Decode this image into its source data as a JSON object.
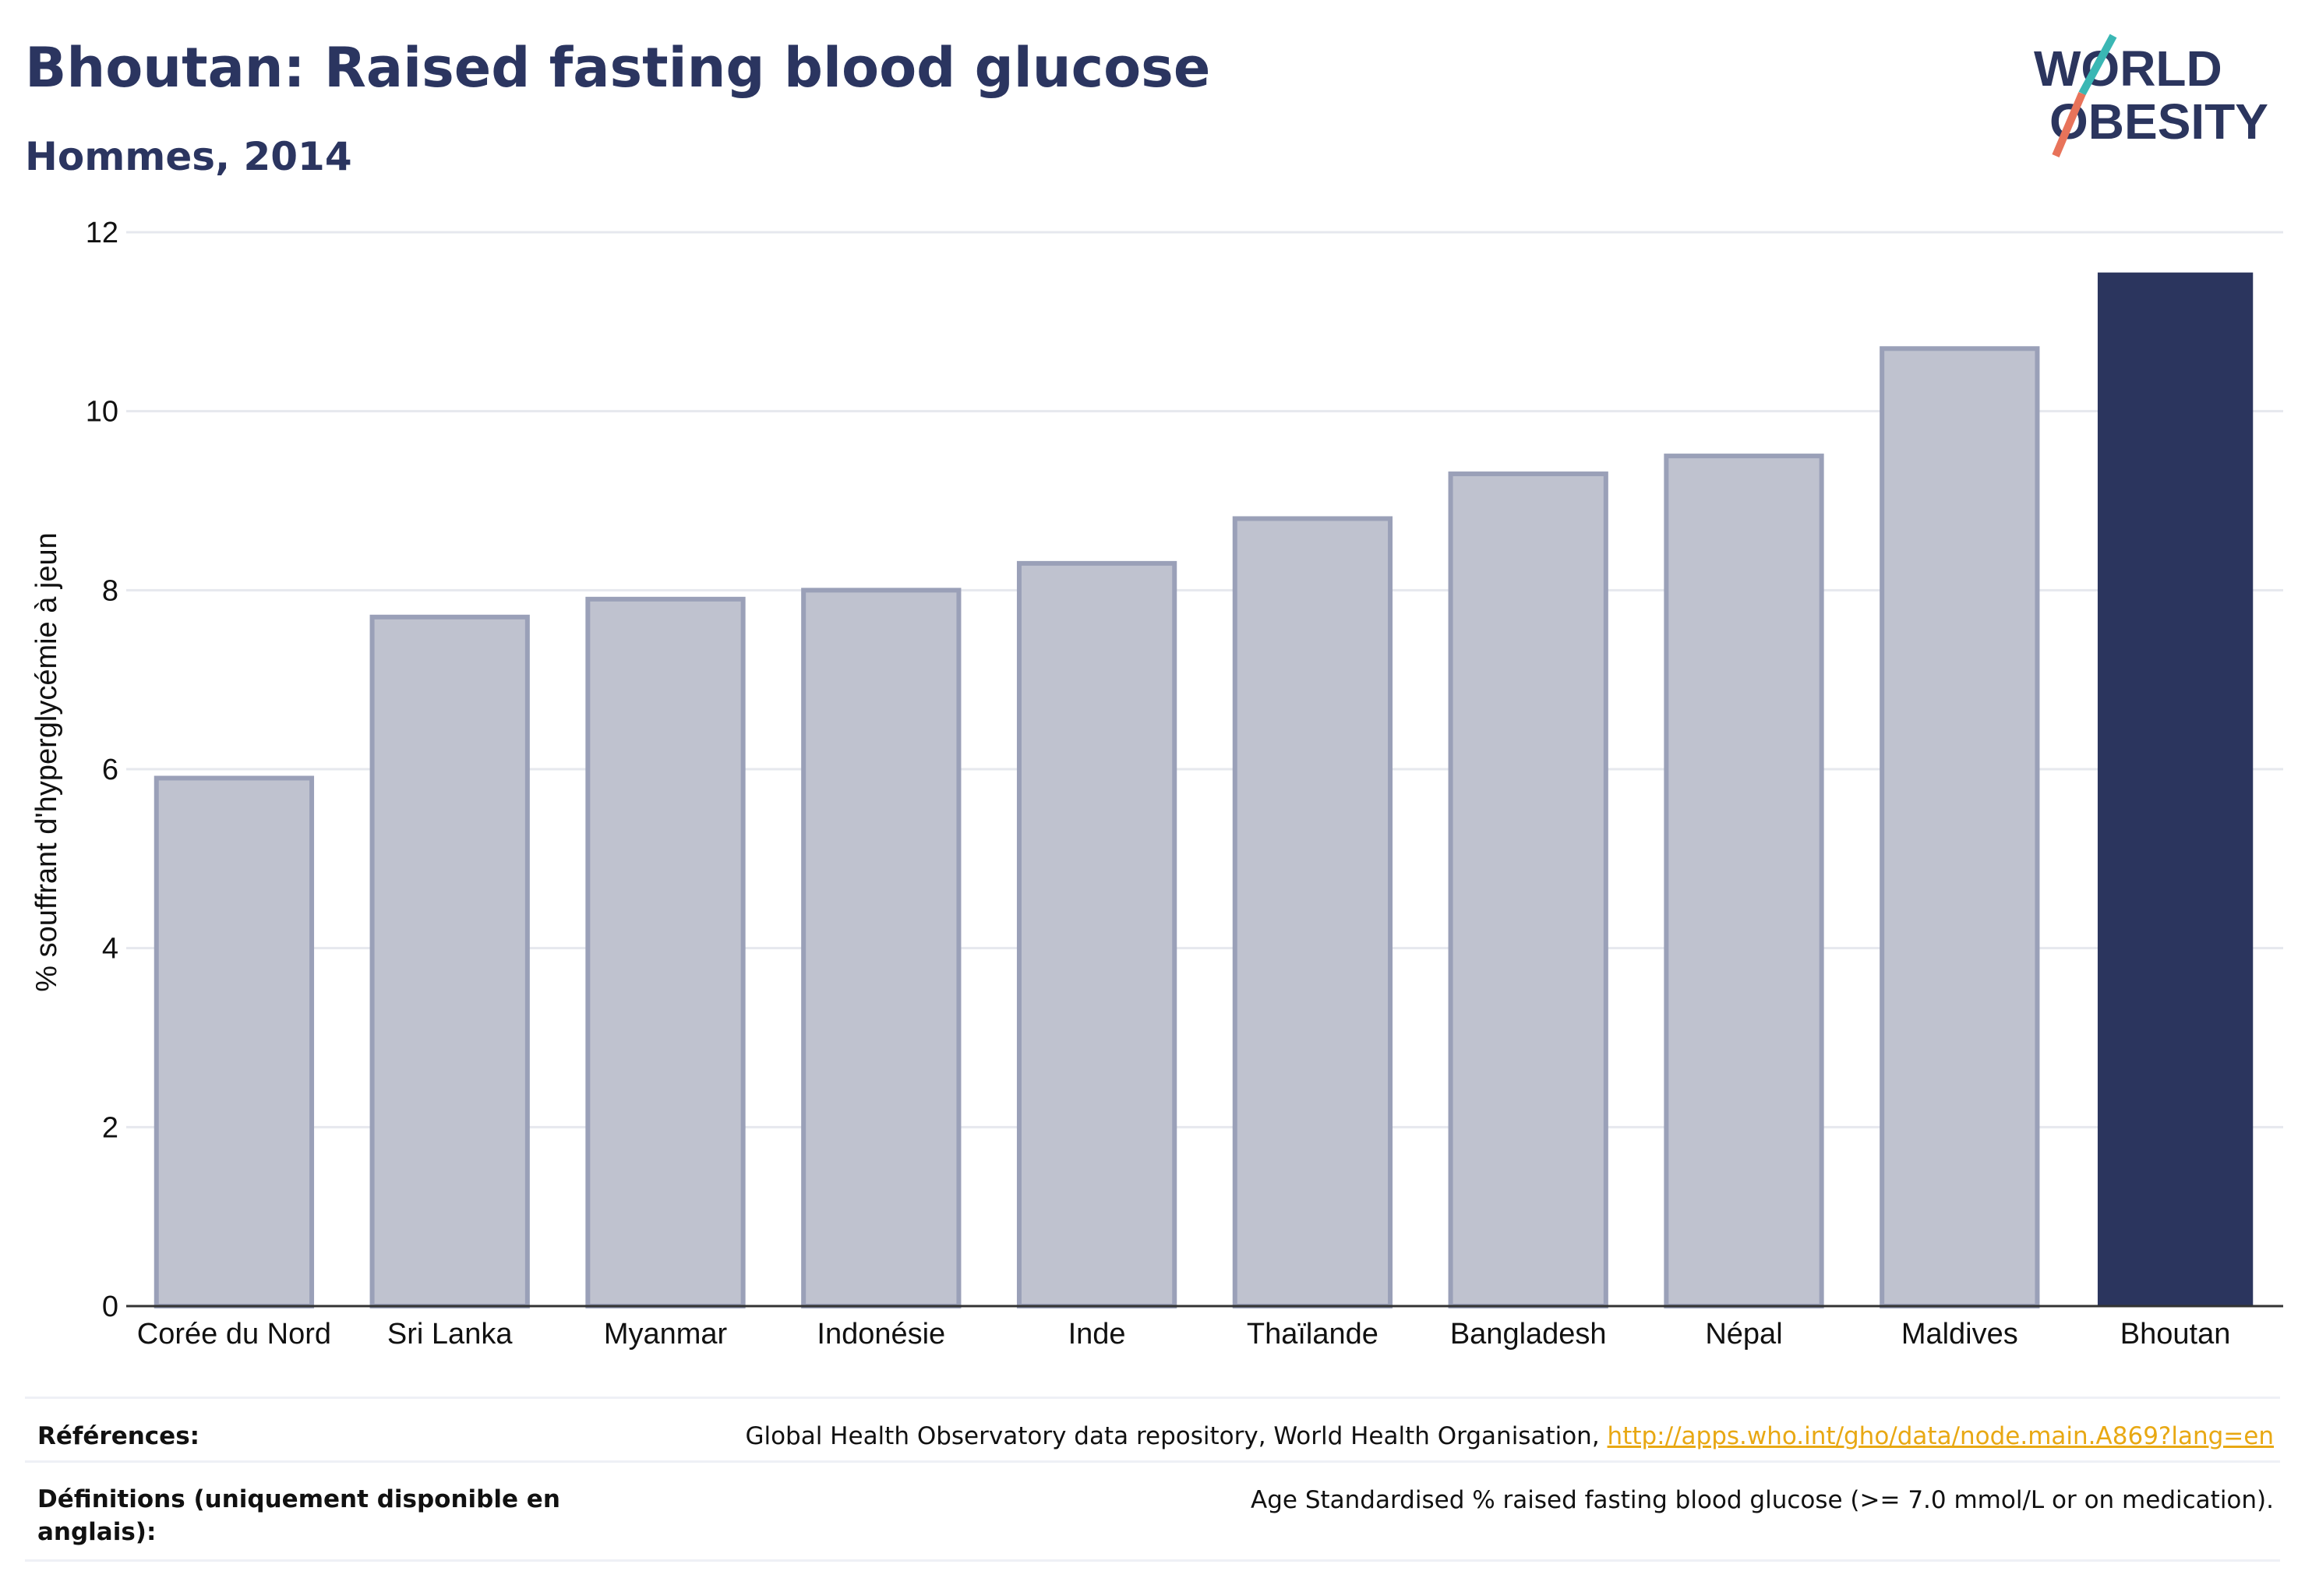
{
  "header": {
    "title": "Bhoutan: Raised fasting blood glucose",
    "subtitle": "Hommes, 2014",
    "logo_line1": "WORLD",
    "logo_line2": "OBESITY"
  },
  "chart_data": {
    "type": "bar",
    "title": "Bhoutan: Raised fasting blood glucose",
    "subtitle": "Hommes, 2014",
    "ylabel": "% souffrant d'hyperglycémie à jeun",
    "xlabel": "",
    "ylim": [
      0,
      12
    ],
    "yticks": [
      0,
      2,
      4,
      6,
      8,
      10,
      12
    ],
    "grid": true,
    "categories": [
      "Corée du Nord",
      "Sri Lanka",
      "Myanmar",
      "Indonésie",
      "Inde",
      "Thaïlande",
      "Bangladesh",
      "Népal",
      "Maldives",
      "Bhoutan"
    ],
    "values": [
      5.9,
      7.7,
      7.9,
      8.0,
      8.3,
      8.8,
      9.3,
      9.5,
      10.7,
      11.55
    ],
    "highlight": "Bhoutan",
    "colors": {
      "bar": "#bfc2cf",
      "bar_stroke": "#9aa0b8",
      "highlight": "#2b355e",
      "grid": "#e6e8ee",
      "axis": "#333333"
    }
  },
  "footer": {
    "references_label": "Références:",
    "references_text": "Global Health Observatory data repository, World Health Organisation, ",
    "references_link": "http://apps.who.int/gho/data/node.main.A869?lang=en",
    "definitions_label_1": "Définitions (uniquement disponible en",
    "definitions_label_2": "anglais):",
    "definitions_text": "Age Standardised % raised fasting blood glucose (>= 7.0 mmol/L or on medication)."
  }
}
